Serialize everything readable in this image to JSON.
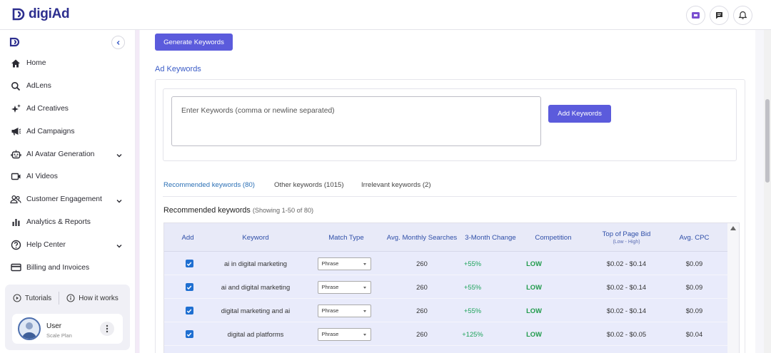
{
  "app": {
    "logo_text": "digiAd"
  },
  "sidebar": {
    "items": [
      {
        "label": "Home",
        "icon": "home-icon",
        "chevron": false
      },
      {
        "label": "AdLens",
        "icon": "search-icon",
        "chevron": false
      },
      {
        "label": "Ad Creatives",
        "icon": "sparkles-icon",
        "chevron": false
      },
      {
        "label": "Ad Campaigns",
        "icon": "megaphone-icon",
        "chevron": false
      },
      {
        "label": "AI Avatar Generation",
        "icon": "robot-icon",
        "chevron": true
      },
      {
        "label": "AI Videos",
        "icon": "video-icon",
        "chevron": false
      },
      {
        "label": "Customer Engagement",
        "icon": "users-icon",
        "chevron": true
      },
      {
        "label": "Analytics & Reports",
        "icon": "bar-chart-icon",
        "chevron": false
      },
      {
        "label": "Help Center",
        "icon": "help-icon",
        "chevron": true
      },
      {
        "label": "Billing and Invoices",
        "icon": "credit-card-icon",
        "chevron": false
      }
    ],
    "tutorials_label": "Tutorials",
    "how_it_works_label": "How it works",
    "user": {
      "name": "User",
      "plan": "Scale Plan"
    }
  },
  "main": {
    "generate_button": "Generate Keywords",
    "section_title": "Ad Keywords",
    "input_placeholder": "Enter Keywords (comma or newline separated)",
    "add_button": "Add Keywords",
    "tabs": [
      {
        "label": "Recommended keywords (80)",
        "active": true
      },
      {
        "label": "Other keywords (1015)",
        "active": false
      },
      {
        "label": "Irrelevant keywords (2)",
        "active": false
      }
    ],
    "table_title": "Recommended keywords",
    "table_subtitle": "(Showing 1-50 of 80)",
    "columns": {
      "add": "Add",
      "keyword": "Keyword",
      "match_type": "Match Type",
      "searches": "Avg. Monthly Searches",
      "change": "3-Month Change",
      "competition": "Competition",
      "bid": "Top of Page Bid",
      "bid_sub": "(Low - High)",
      "cpc": "Avg. CPC"
    },
    "rows": [
      {
        "checked": true,
        "keyword": "ai in digital marketing",
        "match_type": "Phrase",
        "searches": "260",
        "change": "+55%",
        "competition": "LOW",
        "bid": "$0.02 - $0.14",
        "cpc": "$0.09"
      },
      {
        "checked": true,
        "keyword": "ai and digital marketing",
        "match_type": "Phrase",
        "searches": "260",
        "change": "+55%",
        "competition": "LOW",
        "bid": "$0.02 - $0.14",
        "cpc": "$0.09"
      },
      {
        "checked": true,
        "keyword": "digital marketing and ai",
        "match_type": "Phrase",
        "searches": "260",
        "change": "+55%",
        "competition": "LOW",
        "bid": "$0.02 - $0.14",
        "cpc": "$0.09"
      },
      {
        "checked": true,
        "keyword": "digital ad platforms",
        "match_type": "Phrase",
        "searches": "260",
        "change": "+125%",
        "competition": "LOW",
        "bid": "$0.02 - $0.05",
        "cpc": "$0.04"
      }
    ]
  },
  "colors": {
    "accent": "#5b5bdc",
    "link": "#3b5cc7",
    "positive": "#1ea35b",
    "header_bg": "#e8eaf8"
  }
}
